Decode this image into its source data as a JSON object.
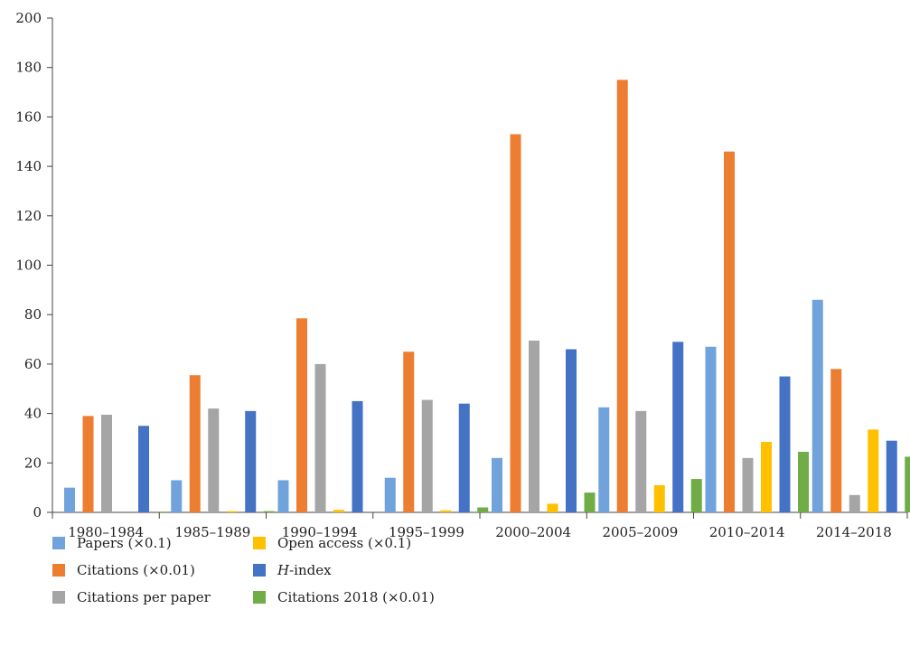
{
  "chart_data": {
    "type": "bar",
    "title": "",
    "xlabel": "",
    "ylabel": "",
    "ylim": [
      0,
      200
    ],
    "yticks": [
      0,
      20,
      40,
      60,
      80,
      100,
      120,
      140,
      160,
      180,
      200
    ],
    "grid": false,
    "legend_placement": "bottom-left",
    "categories": [
      "1980–1984",
      "1985–1989",
      "1990–1994",
      "1995–1999",
      "2000–2004",
      "2005–2009",
      "2010–2014",
      "2014–2018"
    ],
    "series": [
      {
        "name": "Papers (×0.1)",
        "color": "#70a3dc",
        "values": [
          10,
          13,
          13,
          14,
          22,
          42.5,
          67,
          86
        ]
      },
      {
        "name": "Citations (×0.01)",
        "color": "#ed7d31",
        "values": [
          39,
          55.5,
          78.5,
          65,
          153,
          175,
          146,
          58
        ]
      },
      {
        "name": "Citations per paper",
        "color": "#a5a5a5",
        "values": [
          39.5,
          42,
          60,
          45.5,
          69.5,
          41,
          22,
          7
        ]
      },
      {
        "name": "Open access (×0.1)",
        "color": "#ffc000",
        "values": [
          0,
          0.5,
          1,
          0.8,
          3.5,
          11,
          28.5,
          33.5
        ]
      },
      {
        "name": "H-index",
        "name_italic": "H",
        "name_rest": "-index",
        "color": "#4472c4",
        "values": [
          35,
          41,
          45,
          44,
          66,
          69,
          55,
          29
        ]
      },
      {
        "name": "Citations 2018 (×0.01)",
        "color": "#70ad47",
        "values": [
          0.3,
          0.5,
          0,
          2,
          8,
          13.5,
          24.5,
          22.5
        ]
      }
    ]
  }
}
